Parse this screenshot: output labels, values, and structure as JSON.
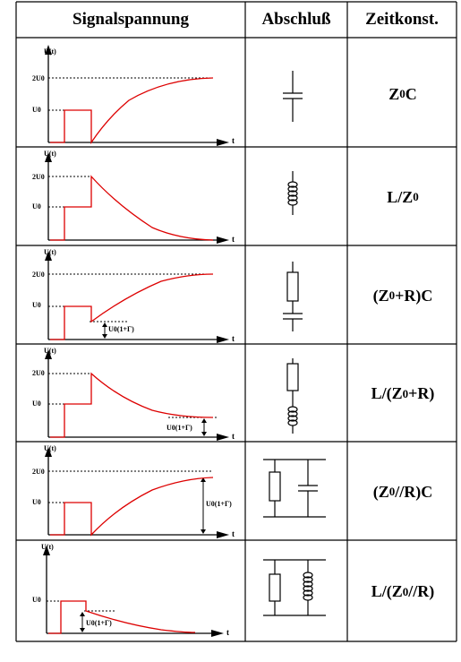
{
  "header": {
    "col1": "Signalspannung",
    "col2": "Abschluß",
    "col3": "Zeitkonst."
  },
  "axis": {
    "y_label": "U(t)",
    "x_label": "t"
  },
  "rows": [
    {
      "ylabels": [
        "2U0",
        "U0"
      ],
      "annotation": "",
      "termination": "capacitor",
      "tc": {
        "a": "Z",
        "sub": "0",
        "b": "C",
        "c": "",
        "d": ""
      }
    },
    {
      "ylabels": [
        "2U0",
        "U0"
      ],
      "annotation": "",
      "termination": "inductor",
      "tc": {
        "a": "L/Z",
        "sub": "0",
        "b": "",
        "c": "",
        "d": ""
      }
    },
    {
      "ylabels": [
        "2U0",
        "U0"
      ],
      "annotation": "U0(1+Γ)",
      "termination": "resistor-capacitor-series",
      "tc": {
        "a": "(Z",
        "sub": "0",
        "b": "+R)C",
        "c": "",
        "d": ""
      }
    },
    {
      "ylabels": [
        "2U0",
        "U0"
      ],
      "annotation": "U0(1+Γ)",
      "termination": "resistor-inductor-series",
      "tc": {
        "a": "L/(Z",
        "sub": "0",
        "b": "+R)",
        "c": "",
        "d": ""
      }
    },
    {
      "ylabels": [
        "2U0",
        "U0"
      ],
      "annotation": "U0(1+Γ)",
      "termination": "resistor-capacitor-parallel",
      "tc": {
        "a": "(Z",
        "sub": "0",
        "b": "//R)C",
        "c": "",
        "d": ""
      }
    },
    {
      "ylabels": [
        "U0"
      ],
      "annotation": "U0(1+Γ)",
      "termination": "resistor-inductor-parallel",
      "tc": {
        "a": "L/(Z",
        "sub": "0",
        "b": "//R)",
        "c": "",
        "d": ""
      }
    }
  ]
}
